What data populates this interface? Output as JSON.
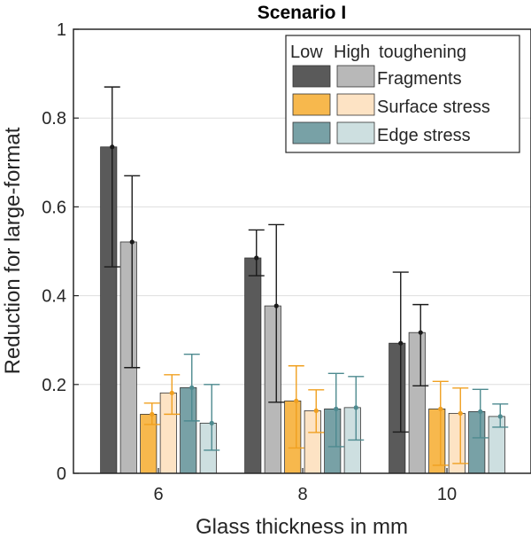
{
  "chart_data": {
    "type": "bar",
    "title": "Scenario I",
    "xlabel": "Glass thickness in mm",
    "ylabel": "Reduction for large-format",
    "categories": [
      "6",
      "8",
      "10"
    ],
    "ylim": [
      0,
      1
    ],
    "yticks": [
      "0",
      "0.2",
      "0.4",
      "0.6",
      "0.8",
      "1"
    ],
    "grid": true,
    "legend_placement": "top-right",
    "legend_header": [
      "Low",
      "High",
      "toughening"
    ],
    "legend_labels": [
      "Fragments",
      "Surface stress",
      "Edge stress"
    ],
    "series": [
      {
        "color": "#5a5a5a",
        "errcolor": "#1a1a1a",
        "values": [
          0.735,
          0.485,
          0.293
        ],
        "err_low": [
          0.465,
          0.445,
          0.093
        ],
        "err_high": [
          0.87,
          0.548,
          0.453
        ]
      },
      {
        "color": "#b8b8b8",
        "errcolor": "#1a1a1a",
        "values": [
          0.521,
          0.377,
          0.317
        ],
        "err_low": [
          0.238,
          0.16,
          0.197
        ],
        "err_high": [
          0.67,
          0.56,
          0.38
        ]
      },
      {
        "color": "#f7b84d",
        "errcolor": "#f0a020",
        "values": [
          0.133,
          0.163,
          0.145
        ],
        "err_low": [
          0.11,
          0.057,
          0.018
        ],
        "err_high": [
          0.158,
          0.242,
          0.207
        ]
      },
      {
        "color": "#fde3c4",
        "errcolor": "#f0a020",
        "values": [
          0.181,
          0.141,
          0.135
        ],
        "err_low": [
          0.133,
          0.092,
          0.022
        ],
        "err_high": [
          0.222,
          0.188,
          0.192
        ]
      },
      {
        "color": "#78a1a6",
        "errcolor": "#4d8a8f",
        "values": [
          0.193,
          0.145,
          0.139
        ],
        "err_low": [
          0.118,
          0.06,
          0.08
        ],
        "err_high": [
          0.268,
          0.225,
          0.189
        ]
      },
      {
        "color": "#cddfe0",
        "errcolor": "#4d8a8f",
        "values": [
          0.113,
          0.148,
          0.128
        ],
        "err_low": [
          0.052,
          0.075,
          0.104
        ],
        "err_high": [
          0.2,
          0.218,
          0.156
        ]
      }
    ]
  }
}
